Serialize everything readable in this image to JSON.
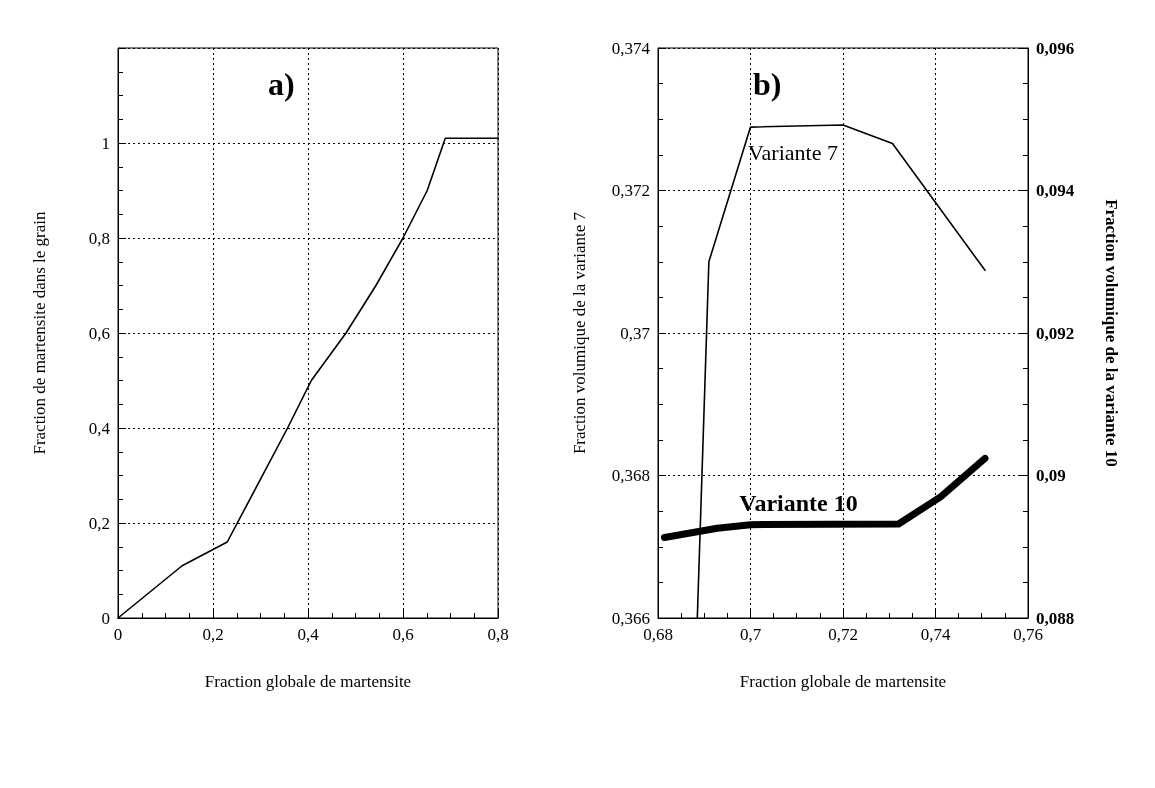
{
  "chart_data": [
    {
      "type": "line",
      "xlabel": "Fraction globale de martensite",
      "ylabel": "Fraction de martensite dans le grain",
      "annotations": [
        "a)"
      ],
      "x": [
        0,
        0.135,
        0.23,
        0.357,
        0.407,
        0.48,
        0.543,
        0.6,
        0.651,
        0.689,
        0.8
      ],
      "series": [
        {
          "color": "#000000",
          "values": [
            0,
            0.11,
            0.16,
            0.4,
            0.5,
            0.6,
            0.7,
            0.8,
            0.9,
            1.01,
            1.01
          ]
        }
      ],
      "xlim": [
        0,
        0.8
      ],
      "xticks": [
        0,
        {
          "value": 0.2,
          "label": "0,2"
        },
        {
          "value": 0.4,
          "label": "0,4"
        },
        {
          "value": 0.6,
          "label": "0,6"
        },
        {
          "value": 0.8,
          "label": "0,8"
        }
      ],
      "ylim": [
        0,
        1.2
      ],
      "yticks": [
        0,
        {
          "value": 0.2,
          "label": "0,2"
        },
        {
          "value": 0.4,
          "label": "0,4"
        },
        {
          "value": 0.6,
          "label": "0,6"
        },
        {
          "value": 0.8,
          "label": "0,8"
        },
        1,
        {
          "value": 1.2,
          "label": null
        }
      ],
      "grid": true,
      "legend": false,
      "marker": "none",
      "line_style": "solid"
    },
    {
      "type": "line",
      "xlabel": "Fraction globale de martensite",
      "ylabel": "Fraction volumique de la variante 7",
      "y2label": "Fraction volumique de la variante 10",
      "annotations": [
        "b)"
      ],
      "series": [
        {
          "name": "Variante 7",
          "color": "#000000",
          "x": [
            0.6885,
            0.691,
            0.7,
            0.72,
            0.7307,
            0.7507
          ],
          "values": [
            0.366,
            0.371,
            0.37289,
            0.37292,
            0.37266,
            0.37088
          ]
        },
        {
          "name": "Variante 10",
          "color": "#000000",
          "axis": "y2",
          "x": [
            0.6814,
            0.6928,
            0.7,
            0.732,
            0.7411,
            0.7507
          ],
          "values": [
            0.08913,
            0.08926,
            0.08931,
            0.08932,
            0.0897,
            0.09024
          ]
        }
      ],
      "xlim": [
        0.68,
        0.76
      ],
      "xticks": [
        {
          "value": 0.68,
          "label": "0,68"
        },
        {
          "value": 0.7,
          "label": "0,7"
        },
        {
          "value": 0.72,
          "label": "0,72"
        },
        {
          "value": 0.74,
          "label": "0,74"
        },
        {
          "value": 0.76,
          "label": "0,76"
        }
      ],
      "ylim": [
        0.366,
        0.374
      ],
      "yticks": [
        {
          "value": 0.366,
          "label": "0,366"
        },
        {
          "value": 0.368,
          "label": "0,368"
        },
        {
          "value": 0.37,
          "label": "0,37"
        },
        {
          "value": 0.372,
          "label": "0,372"
        },
        {
          "value": 0.374,
          "label": "0,374"
        }
      ],
      "y2lim": [
        0.088,
        0.096
      ],
      "y2ticks": [
        {
          "value": 0.088,
          "label": "0,088"
        },
        {
          "value": 0.09,
          "label": "0,09"
        },
        {
          "value": 0.092,
          "label": "0,092"
        },
        {
          "value": 0.094,
          "label": "0,094"
        },
        {
          "value": 0.096,
          "label": "0,096"
        }
      ],
      "grid": true,
      "legend": false,
      "marker": "none",
      "line_style": "solid"
    }
  ]
}
